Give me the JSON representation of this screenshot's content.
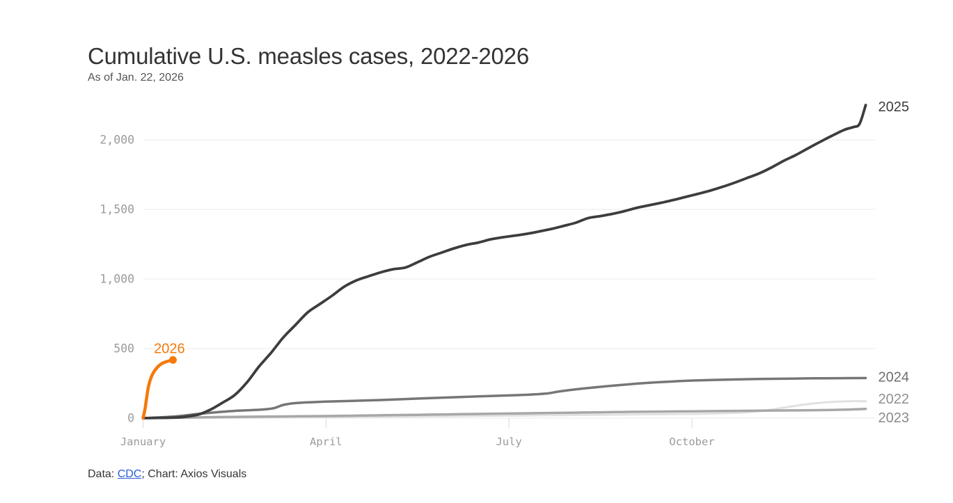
{
  "title": "Cumulative U.S. measles cases, 2022-2026",
  "subtitle": "As of Jan. 22, 2026",
  "footer": {
    "prefix": "Data: ",
    "link_text": "CDC",
    "suffix": "; Chart: Axios Visuals"
  },
  "colors": {
    "grid": "#eaeaea",
    "tick": "#d9d9d9",
    "axis_label": "#9b9b9b",
    "accent_orange": "#f5790b",
    "link_blue": "#2a5bd7",
    "title_text": "#333333"
  },
  "chart_data": {
    "type": "line",
    "title": "Cumulative U.S. measles cases, 2022-2026",
    "subtitle": "As of Jan. 22, 2026",
    "xlabel": "",
    "ylabel": "",
    "x_unit": "month index (0 = Jan 1, 12 = Dec 31)",
    "y_unit": "cumulative cases",
    "ylim": [
      0,
      2300
    ],
    "grid": "horizontal",
    "legend": "inline end-of-line labels",
    "yticks": {
      "values": [
        0,
        500,
        1000,
        1500,
        2000
      ],
      "labels": [
        "0",
        "500",
        "1,000",
        "1,500",
        "2,000"
      ]
    },
    "xticks": {
      "values": [
        0,
        3,
        6,
        9
      ],
      "labels": [
        "January",
        "April",
        "July",
        "October"
      ]
    },
    "series": [
      {
        "name": "2022",
        "label": "2022",
        "color": "#e1e1e1",
        "label_color": "#8f8f8f",
        "stroke_width": 3,
        "end_dot": false,
        "label_anchor": "start",
        "label_offset": [
          18,
          3
        ],
        "end_value": 121,
        "points": [
          [
            0,
            0
          ],
          [
            0.5,
            1
          ],
          [
            1,
            2
          ],
          [
            1.5,
            3
          ],
          [
            2,
            4
          ],
          [
            2.5,
            5
          ],
          [
            3,
            6
          ],
          [
            3.5,
            8
          ],
          [
            4,
            10
          ],
          [
            4.5,
            12
          ],
          [
            5,
            14
          ],
          [
            5.5,
            16
          ],
          [
            6,
            18
          ],
          [
            6.5,
            20
          ],
          [
            7,
            22
          ],
          [
            7.5,
            24
          ],
          [
            8,
            26
          ],
          [
            8.5,
            28
          ],
          [
            9,
            30
          ],
          [
            9.3,
            32
          ],
          [
            9.6,
            36
          ],
          [
            9.9,
            42
          ],
          [
            10.2,
            55
          ],
          [
            10.5,
            75
          ],
          [
            10.8,
            95
          ],
          [
            11.1,
            110
          ],
          [
            11.4,
            119
          ],
          [
            11.7,
            122
          ],
          [
            11.85,
            121
          ]
        ]
      },
      {
        "name": "2023",
        "label": "2023",
        "color": "#a7a7a7",
        "label_color": "#8a8a8a",
        "stroke_width": 3.5,
        "end_dot": false,
        "label_anchor": "start",
        "label_offset": [
          18,
          19
        ],
        "end_value": 66,
        "points": [
          [
            0,
            0
          ],
          [
            0.5,
            3
          ],
          [
            1,
            6
          ],
          [
            1.5,
            9
          ],
          [
            2,
            11
          ],
          [
            2.5,
            13
          ],
          [
            3,
            15
          ],
          [
            3.5,
            18
          ],
          [
            4,
            21
          ],
          [
            4.5,
            24
          ],
          [
            5,
            27
          ],
          [
            5.5,
            30
          ],
          [
            6,
            33
          ],
          [
            6.5,
            36
          ],
          [
            7,
            39
          ],
          [
            7.5,
            42
          ],
          [
            8,
            45
          ],
          [
            8.5,
            47
          ],
          [
            9,
            49
          ],
          [
            9.5,
            51
          ],
          [
            10,
            53
          ],
          [
            10.5,
            55
          ],
          [
            11,
            57
          ],
          [
            11.3,
            59
          ],
          [
            11.6,
            62
          ],
          [
            11.85,
            66
          ]
        ]
      },
      {
        "name": "2024",
        "label": "2024",
        "color": "#767676",
        "label_color": "#6e6e6e",
        "stroke_width": 3.5,
        "end_dot": false,
        "label_anchor": "start",
        "label_offset": [
          18,
          5
        ],
        "end_value": 288,
        "points": [
          [
            0,
            0
          ],
          [
            0.3,
            6
          ],
          [
            0.6,
            15
          ],
          [
            0.9,
            30
          ],
          [
            1.2,
            42
          ],
          [
            1.5,
            52
          ],
          [
            1.8,
            58
          ],
          [
            2.0,
            63
          ],
          [
            2.15,
            72
          ],
          [
            2.3,
            95
          ],
          [
            2.5,
            108
          ],
          [
            2.8,
            115
          ],
          [
            3.1,
            120
          ],
          [
            3.5,
            125
          ],
          [
            3.9,
            130
          ],
          [
            4.3,
            137
          ],
          [
            4.7,
            144
          ],
          [
            5.1,
            150
          ],
          [
            5.5,
            156
          ],
          [
            5.9,
            162
          ],
          [
            6.3,
            168
          ],
          [
            6.6,
            176
          ],
          [
            6.8,
            190
          ],
          [
            7.0,
            202
          ],
          [
            7.2,
            212
          ],
          [
            7.5,
            225
          ],
          [
            7.8,
            237
          ],
          [
            8.1,
            248
          ],
          [
            8.4,
            257
          ],
          [
            8.7,
            264
          ],
          [
            9.0,
            270
          ],
          [
            9.4,
            275
          ],
          [
            9.8,
            279
          ],
          [
            10.2,
            282
          ],
          [
            10.6,
            284
          ],
          [
            11.0,
            286
          ],
          [
            11.4,
            287
          ],
          [
            11.85,
            288
          ]
        ]
      },
      {
        "name": "2025",
        "label": "2025",
        "color": "#3d3d3d",
        "label_color": "#3d3d3d",
        "stroke_width": 3.8,
        "end_dot": false,
        "label_anchor": "start",
        "label_offset": [
          18,
          9
        ],
        "end_value": 2250,
        "points": [
          [
            0,
            0
          ],
          [
            0.3,
            2
          ],
          [
            0.6,
            6
          ],
          [
            0.9,
            25
          ],
          [
            1.1,
            60
          ],
          [
            1.3,
            110
          ],
          [
            1.5,
            165
          ],
          [
            1.7,
            255
          ],
          [
            1.9,
            370
          ],
          [
            2.1,
            470
          ],
          [
            2.3,
            580
          ],
          [
            2.5,
            670
          ],
          [
            2.7,
            760
          ],
          [
            2.9,
            820
          ],
          [
            3.1,
            880
          ],
          [
            3.3,
            945
          ],
          [
            3.5,
            990
          ],
          [
            3.7,
            1020
          ],
          [
            3.9,
            1048
          ],
          [
            4.1,
            1070
          ],
          [
            4.3,
            1082
          ],
          [
            4.5,
            1120
          ],
          [
            4.7,
            1160
          ],
          [
            4.9,
            1190
          ],
          [
            5.1,
            1220
          ],
          [
            5.3,
            1245
          ],
          [
            5.5,
            1262
          ],
          [
            5.7,
            1285
          ],
          [
            5.9,
            1300
          ],
          [
            6.1,
            1312
          ],
          [
            6.3,
            1325
          ],
          [
            6.5,
            1342
          ],
          [
            6.7,
            1360
          ],
          [
            6.9,
            1382
          ],
          [
            7.1,
            1405
          ],
          [
            7.3,
            1438
          ],
          [
            7.5,
            1452
          ],
          [
            7.7,
            1468
          ],
          [
            7.9,
            1488
          ],
          [
            8.1,
            1512
          ],
          [
            8.3,
            1530
          ],
          [
            8.5,
            1548
          ],
          [
            8.7,
            1568
          ],
          [
            8.9,
            1590
          ],
          [
            9.1,
            1612
          ],
          [
            9.3,
            1635
          ],
          [
            9.5,
            1662
          ],
          [
            9.7,
            1692
          ],
          [
            9.9,
            1725
          ],
          [
            10.1,
            1758
          ],
          [
            10.3,
            1800
          ],
          [
            10.5,
            1848
          ],
          [
            10.7,
            1890
          ],
          [
            10.9,
            1938
          ],
          [
            11.1,
            1985
          ],
          [
            11.3,
            2030
          ],
          [
            11.5,
            2072
          ],
          [
            11.65,
            2092
          ],
          [
            11.75,
            2115
          ],
          [
            11.85,
            2250
          ]
        ]
      },
      {
        "name": "2026",
        "label": "2026",
        "color": "#f5790b",
        "label_color": "#f5790b",
        "stroke_width": 4.5,
        "end_dot": true,
        "end_dot_radius": 5.5,
        "label_anchor": "middle",
        "label_offset": [
          -5,
          -10
        ],
        "label_halo": true,
        "end_value": 418,
        "points": [
          [
            0,
            0
          ],
          [
            0.03,
            60
          ],
          [
            0.06,
            150
          ],
          [
            0.09,
            230
          ],
          [
            0.13,
            290
          ],
          [
            0.18,
            335
          ],
          [
            0.24,
            368
          ],
          [
            0.3,
            390
          ],
          [
            0.37,
            404
          ],
          [
            0.44,
            413
          ],
          [
            0.49,
            418
          ]
        ]
      }
    ]
  }
}
